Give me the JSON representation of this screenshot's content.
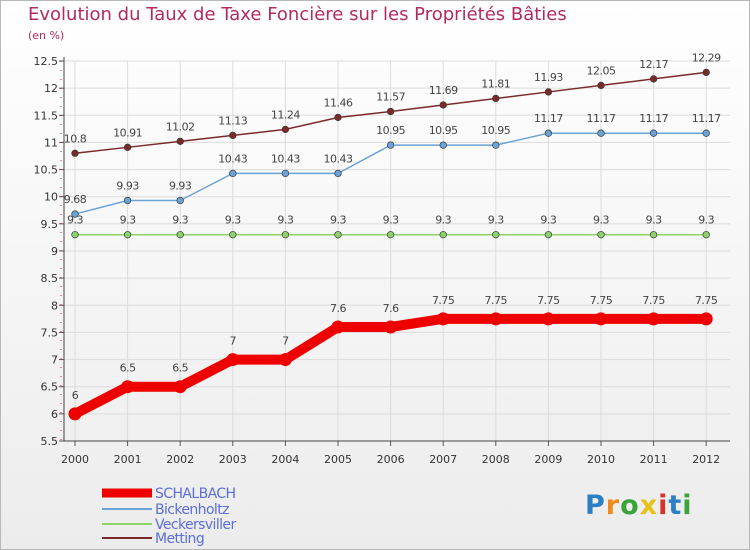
{
  "title": "Evolution du Taux de Taxe Foncière sur les Propriétés Bâties",
  "subtitle": "(en %)",
  "logo": {
    "text": [
      "P",
      "r",
      "o",
      "x",
      "i",
      "t",
      "i"
    ],
    "colors": [
      "#2b7fc4",
      "#f08c1e",
      "#3aa33a",
      "#e8c01a",
      "#d8302a",
      "#2b7fc4",
      "#3aa33a"
    ]
  },
  "chart_data": {
    "type": "line",
    "title": "Evolution du Taux de Taxe Foncière sur les Propriétés Bâties",
    "ylabel": "(en %)",
    "x": [
      "2000",
      "2001",
      "2002",
      "2003",
      "2004",
      "2005",
      "2006",
      "2007",
      "2008",
      "2009",
      "2010",
      "2011",
      "2012"
    ],
    "ylim": [
      5.5,
      12.5
    ],
    "yticks": [
      "5.5",
      "6",
      "6.5",
      "7",
      "7.5",
      "8",
      "8.5",
      "9",
      "9.5",
      "10",
      "10.5",
      "11",
      "11.5",
      "12",
      "12.5"
    ],
    "series": [
      {
        "name": "SCHALBACH",
        "color": "#ee0000",
        "values": [
          6,
          6.5,
          6.5,
          7,
          7,
          7.6,
          7.6,
          7.75,
          7.75,
          7.75,
          7.75,
          7.75,
          7.75
        ],
        "labels": [
          "6",
          "6.5",
          "6.5",
          "7",
          "7",
          "7.6",
          "7.6",
          "7.75",
          "7.75",
          "7.75",
          "7.75",
          "7.75",
          "7.75"
        ]
      },
      {
        "name": "Bickenholtz",
        "color": "#6aa3d6",
        "values": [
          9.68,
          9.93,
          9.93,
          10.43,
          10.43,
          10.43,
          10.95,
          10.95,
          10.95,
          11.17,
          11.17,
          11.17,
          11.17
        ],
        "labels": [
          "9.68",
          "9.93",
          "9.93",
          "10.43",
          "10.43",
          "10.43",
          "10.95",
          "10.95",
          "10.95",
          "11.17",
          "11.17",
          "11.17",
          "11.17"
        ]
      },
      {
        "name": "Veckersviller",
        "color": "#8ed36a",
        "values": [
          9.3,
          9.3,
          9.3,
          9.3,
          9.3,
          9.3,
          9.3,
          9.3,
          9.3,
          9.3,
          9.3,
          9.3,
          9.3
        ],
        "labels": [
          "9.3",
          "9.3",
          "9.3",
          "9.3",
          "9.3",
          "9.3",
          "9.3",
          "9.3",
          "9.3",
          "9.3",
          "9.3",
          "9.3",
          "9.3"
        ]
      },
      {
        "name": "Metting",
        "color": "#7a2a2a",
        "values": [
          10.8,
          10.91,
          11.02,
          11.13,
          11.24,
          11.46,
          11.57,
          11.69,
          11.81,
          11.93,
          12.05,
          12.17,
          12.29
        ],
        "labels": [
          "10.8",
          "10.91",
          "11.02",
          "11.13",
          "11.24",
          "11.46",
          "11.57",
          "11.69",
          "11.81",
          "11.93",
          "12.05",
          "12.17",
          "12.29"
        ]
      }
    ]
  }
}
